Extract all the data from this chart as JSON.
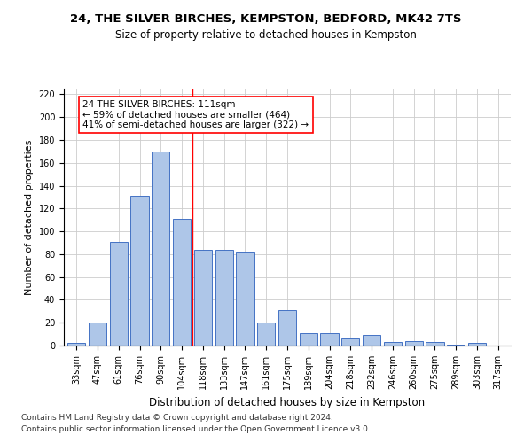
{
  "title1": "24, THE SILVER BIRCHES, KEMPSTON, BEDFORD, MK42 7TS",
  "title2": "Size of property relative to detached houses in Kempston",
  "xlabel": "Distribution of detached houses by size in Kempston",
  "ylabel": "Number of detached properties",
  "categories": [
    "33sqm",
    "47sqm",
    "61sqm",
    "76sqm",
    "90sqm",
    "104sqm",
    "118sqm",
    "133sqm",
    "147sqm",
    "161sqm",
    "175sqm",
    "189sqm",
    "204sqm",
    "218sqm",
    "232sqm",
    "246sqm",
    "260sqm",
    "275sqm",
    "289sqm",
    "303sqm",
    "317sqm"
  ],
  "values": [
    2,
    20,
    91,
    131,
    170,
    111,
    84,
    84,
    82,
    20,
    31,
    11,
    11,
    6,
    9,
    3,
    4,
    3,
    1,
    2,
    0
  ],
  "bar_color": "#aec6e8",
  "bar_edge_color": "#4472c4",
  "ref_line_x": 5.5,
  "annotation_line1": "24 THE SILVER BIRCHES: 111sqm",
  "annotation_line2": "← 59% of detached houses are smaller (464)",
  "annotation_line3": "41% of semi-detached houses are larger (322) →",
  "ylim": [
    0,
    225
  ],
  "yticks": [
    0,
    20,
    40,
    60,
    80,
    100,
    120,
    140,
    160,
    180,
    200,
    220
  ],
  "footnote1": "Contains HM Land Registry data © Crown copyright and database right 2024.",
  "footnote2": "Contains public sector information licensed under the Open Government Licence v3.0.",
  "title1_fontsize": 9.5,
  "title2_fontsize": 8.5,
  "xlabel_fontsize": 8.5,
  "ylabel_fontsize": 8,
  "tick_fontsize": 7,
  "annotation_fontsize": 7.5,
  "footnote_fontsize": 6.5
}
